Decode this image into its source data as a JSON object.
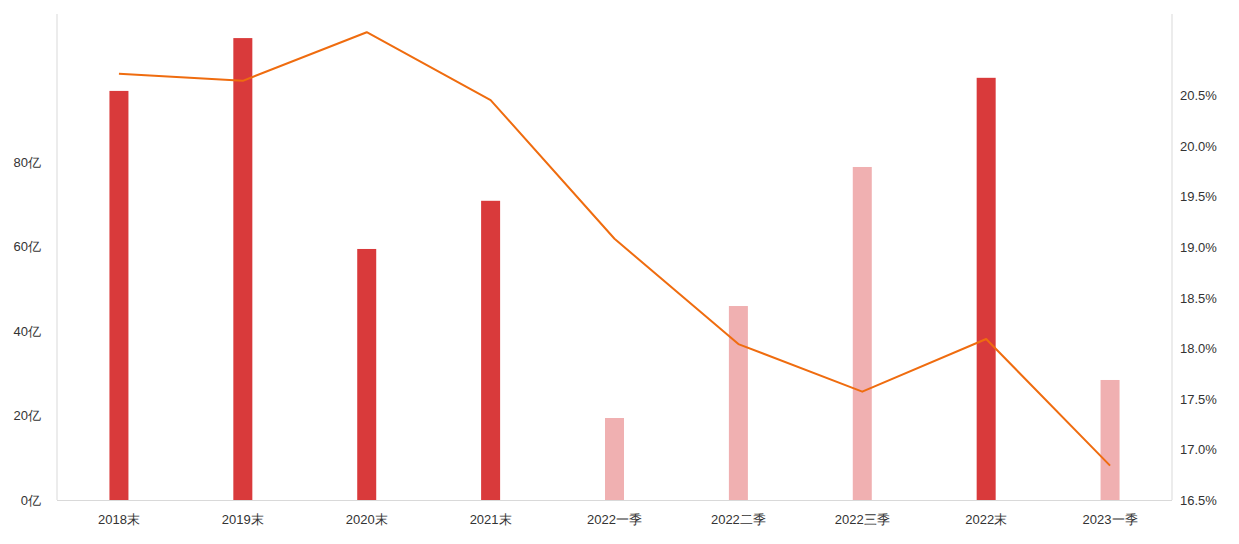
{
  "chart_data": {
    "type": "bar",
    "categories": [
      "2018末",
      "2019末",
      "2020末",
      "2021末",
      "2022一季",
      "2022二季",
      "2022三季",
      "2022末",
      "2023一季"
    ],
    "series": [
      {
        "type": "bar",
        "values": [
          96.8,
          109.3,
          59.4,
          70.8,
          19.4,
          45.9,
          78.8,
          99.9,
          28.4
        ],
        "colors": [
          "#d93a3b",
          "#d93a3b",
          "#d93a3b",
          "#d93a3b",
          "#f0b0b1",
          "#f0b0b1",
          "#f0b0b1",
          "#d93a3b",
          "#f0b0b1"
        ]
      },
      {
        "type": "line",
        "axis": "y2",
        "color": "#ef6c0f",
        "values": [
          20.71,
          20.64,
          21.12,
          20.45,
          19.08,
          18.04,
          17.57,
          18.09,
          16.84
        ]
      }
    ],
    "ylim": [
      0,
      115
    ],
    "yticks": [
      {
        "value": 0,
        "label": "0亿"
      },
      {
        "value": 20,
        "label": "20亿"
      },
      {
        "value": 40,
        "label": "40亿"
      },
      {
        "value": 60,
        "label": "60亿"
      },
      {
        "value": 80,
        "label": "80亿"
      }
    ],
    "y2lim": [
      16.5,
      21.3
    ],
    "y2ticks": [
      {
        "value": 16.5,
        "label": "16.5%"
      },
      {
        "value": 17.0,
        "label": "17.0%"
      },
      {
        "value": 17.5,
        "label": "17.5%"
      },
      {
        "value": 18.0,
        "label": "18.0%"
      },
      {
        "value": 18.5,
        "label": "18.5%"
      },
      {
        "value": 19.0,
        "label": "19.0%"
      },
      {
        "value": 19.5,
        "label": "19.5%"
      },
      {
        "value": 20.0,
        "label": "20.0%"
      },
      {
        "value": 20.5,
        "label": "20.5%"
      }
    ],
    "grid": false
  }
}
